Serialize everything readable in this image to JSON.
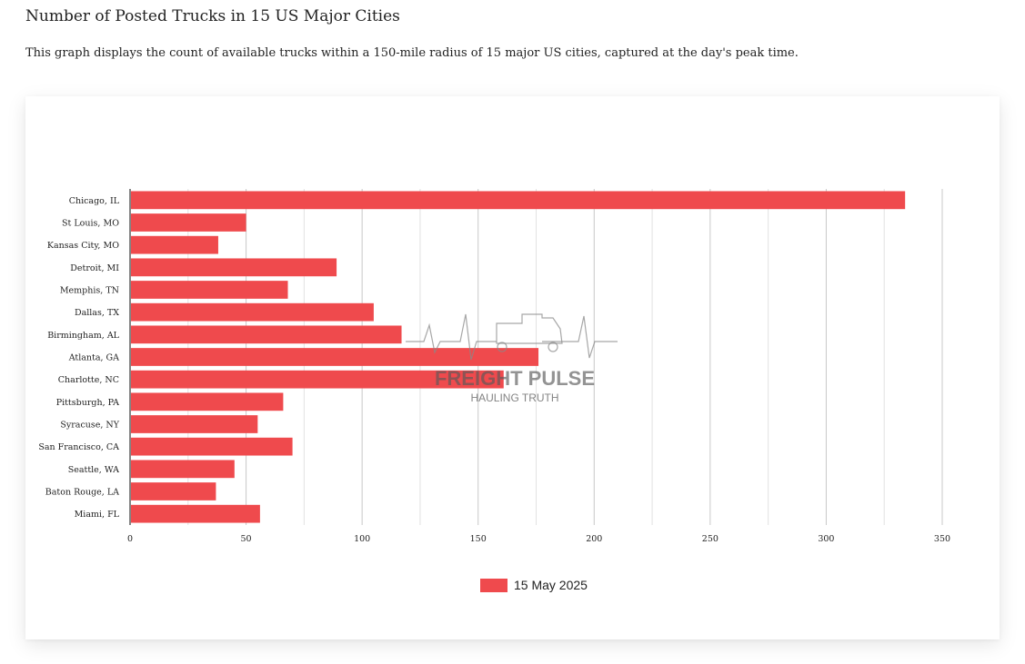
{
  "page": {
    "title": "Number of Posted Trucks in 15 US Major Cities",
    "description": "This graph displays the count of available trucks within a 150-mile radius of 15 major US cities, captured at the day's peak time."
  },
  "watermark": {
    "text": "FREIGHT PULSE",
    "tagline": "HAULING TRUTH",
    "icon": "truck-heartbeat-icon"
  },
  "chart_data": {
    "type": "bar",
    "orientation": "horizontal",
    "categories": [
      "Chicago, IL",
      "St Louis, MO",
      "Kansas City, MO",
      "Detroit, MI",
      "Memphis, TN",
      "Dallas, TX",
      "Birmingham, AL",
      "Atlanta, GA",
      "Charlotte, NC",
      "Pittsburgh, PA",
      "Syracuse, NY",
      "San Francisco, CA",
      "Seattle, WA",
      "Baton Rouge, LA",
      "Miami, FL"
    ],
    "series": [
      {
        "name": "15 May 2025",
        "color": "#ef4a4d",
        "values": [
          334,
          50,
          38,
          89,
          68,
          105,
          117,
          176,
          161,
          66,
          55,
          70,
          45,
          37,
          56
        ]
      }
    ],
    "xlim": [
      0,
      350
    ],
    "xticks": [
      0,
      50,
      100,
      150,
      200,
      250,
      300,
      350
    ],
    "grid": true,
    "legend_position": "bottom-center"
  }
}
